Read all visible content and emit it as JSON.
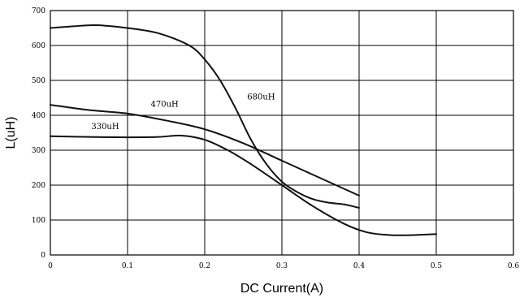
{
  "chart_data": {
    "type": "line",
    "title": "",
    "xlabel": "DC Current(A)",
    "ylabel": "L(uH)",
    "xlim": [
      0,
      0.6
    ],
    "ylim": [
      0,
      700
    ],
    "x_ticks": [
      0,
      0.1,
      0.2,
      0.3,
      0.4,
      0.5,
      0.6
    ],
    "x_tick_labels": [
      "0",
      "0.1",
      "0.2",
      "0.3",
      "0.4",
      "0.5",
      "0.6"
    ],
    "y_ticks": [
      0,
      100,
      200,
      300,
      400,
      500,
      600,
      700
    ],
    "y_tick_labels": [
      "0",
      "100",
      "200",
      "300",
      "400",
      "500",
      "600",
      "700"
    ],
    "grid": true,
    "series": [
      {
        "name": "680uH",
        "x": [
          0,
          0.03,
          0.06,
          0.1,
          0.14,
          0.18,
          0.2,
          0.22,
          0.24,
          0.26,
          0.28,
          0.3,
          0.32,
          0.34,
          0.36,
          0.38,
          0.4
        ],
        "y": [
          650,
          655,
          658,
          650,
          635,
          600,
          560,
          500,
          420,
          330,
          260,
          210,
          180,
          160,
          150,
          145,
          135
        ]
      },
      {
        "name": "470uH",
        "x": [
          0,
          0.05,
          0.1,
          0.15,
          0.2,
          0.25,
          0.3,
          0.35,
          0.4
        ],
        "y": [
          430,
          415,
          405,
          385,
          360,
          320,
          270,
          220,
          170
        ]
      },
      {
        "name": "330uH",
        "x": [
          0,
          0.05,
          0.1,
          0.14,
          0.17,
          0.2,
          0.23,
          0.26,
          0.3,
          0.34,
          0.38,
          0.41,
          0.44,
          0.47,
          0.5
        ],
        "y": [
          340,
          338,
          337,
          338,
          342,
          330,
          300,
          260,
          200,
          140,
          90,
          65,
          57,
          57,
          60
        ]
      }
    ],
    "annotations": [
      {
        "text": "680uH",
        "x": 0.255,
        "y": 445
      },
      {
        "text": "470uH",
        "x": 0.13,
        "y": 425
      },
      {
        "text": "330uH",
        "x": 0.053,
        "y": 360
      }
    ]
  }
}
